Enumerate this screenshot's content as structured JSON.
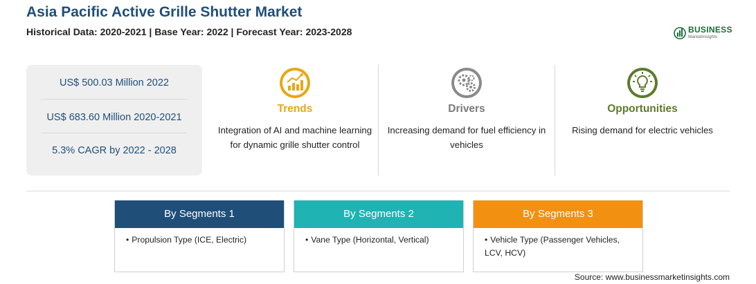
{
  "header": {
    "title": "Asia Pacific Active Grille Shutter Market",
    "subtitle": "Historical Data: 2020-2021 | Base Year: 2022 | Forecast Year: 2023-2028"
  },
  "logo": {
    "name": "BUSINESS",
    "tagline": "MarketInsights",
    "icon": "globe-chart-icon"
  },
  "stats": [
    "US$ 500.03 Million 2022",
    "US$ 683.60 Million 2020-2021",
    "5.3% CAGR by 2022 - 2028"
  ],
  "columns": {
    "trends": {
      "heading": "Trends",
      "text": "Integration of AI and machine learning for dynamic grille shutter control",
      "icon": "growth-chart-icon",
      "color": "#e9a713"
    },
    "drivers": {
      "heading": "Drivers",
      "text": "Increasing demand for fuel efficiency in vehicles",
      "icon": "gears-icon",
      "color": "#7a7a7a"
    },
    "opportunities": {
      "heading": "Opportunities",
      "text": "Rising demand for electric vehicles",
      "icon": "lightbulb-icon",
      "color": "#5d7b2b"
    }
  },
  "segments": [
    {
      "heading": "By Segments 1",
      "item": "Propulsion Type (ICE, Electric)",
      "color": "#1f4e79"
    },
    {
      "heading": "By Segments 2",
      "item": "Vane Type (Horizontal, Vertical)",
      "color": "#1fb3b3"
    },
    {
      "heading": "By Segments 3",
      "item": "Vehicle Type (Passenger Vehicles, LCV, HCV)",
      "color": "#f29111"
    }
  ],
  "bullet": "•",
  "source": "Source: www.businessmarketinsights.com"
}
